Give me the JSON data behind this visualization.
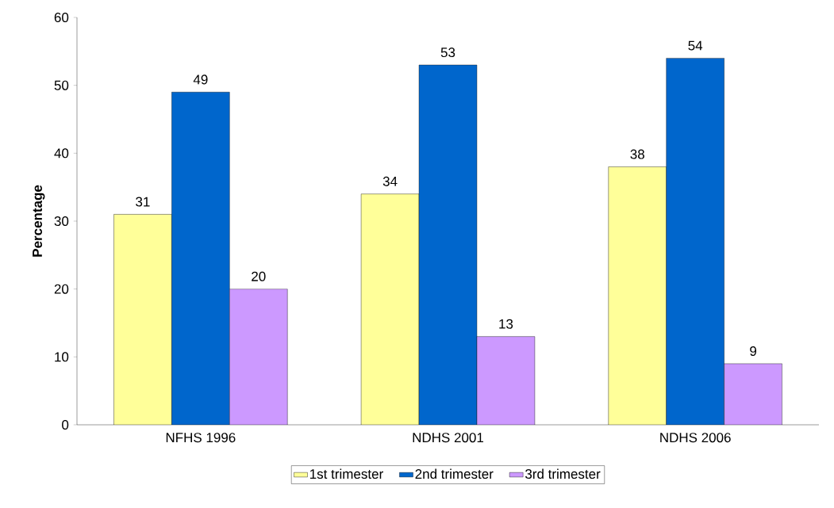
{
  "chart_data": {
    "type": "bar",
    "ylabel": "Percentage",
    "categories": [
      "NFHS 1996",
      "NDHS 2001",
      "NDHS 2006"
    ],
    "series": [
      {
        "name": "1st trimester",
        "color": "#ffff99",
        "values": [
          31,
          34,
          38
        ]
      },
      {
        "name": "2nd trimester",
        "color": "#0066cc",
        "values": [
          49,
          53,
          54
        ]
      },
      {
        "name": "3rd trimester",
        "color": "#cc99ff",
        "values": [
          20,
          13,
          9
        ]
      }
    ],
    "ylim": [
      0,
      60
    ],
    "yticks": [
      0,
      10,
      20,
      30,
      40,
      50,
      60
    ],
    "grid": false,
    "legend": "bottom",
    "data_labels": true
  }
}
